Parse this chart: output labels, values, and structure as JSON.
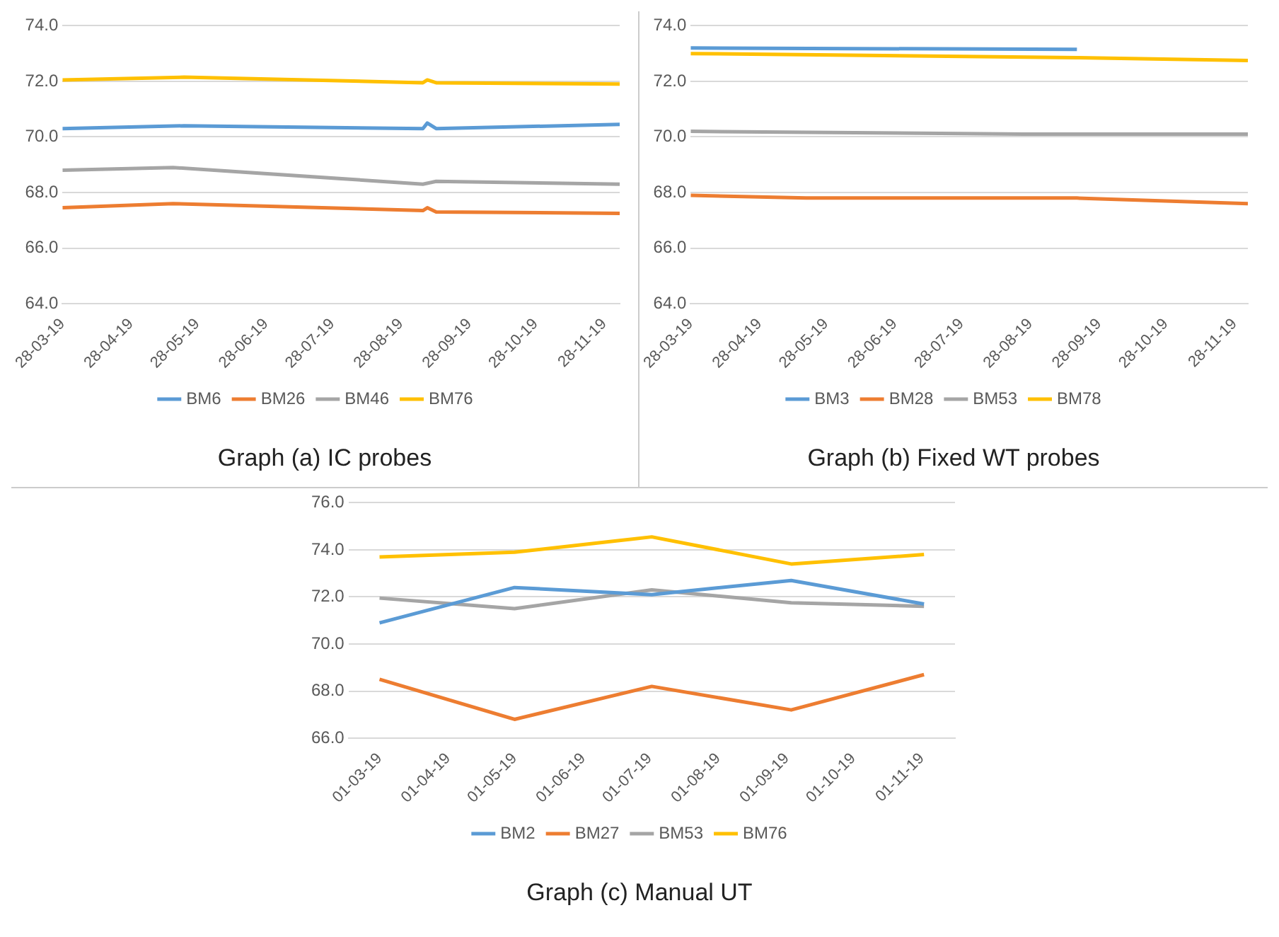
{
  "chart_data": [
    {
      "type": "line",
      "title": "Graph (a) IC probes",
      "xlim": [
        "2019-03-28",
        "2019-12-05"
      ],
      "xticks": [
        {
          "value": "2019-03-28",
          "label": "28-03-19"
        },
        {
          "value": "2019-04-28",
          "label": "28-04-19"
        },
        {
          "value": "2019-05-28",
          "label": "28-05-19"
        },
        {
          "value": "2019-06-28",
          "label": "28-06-19"
        },
        {
          "value": "2019-07-28",
          "label": "28-07-19"
        },
        {
          "value": "2019-08-28",
          "label": "28-08-19"
        },
        {
          "value": "2019-09-28",
          "label": "28-09-19"
        },
        {
          "value": "2019-10-28",
          "label": "28-10-19"
        },
        {
          "value": "2019-11-28",
          "label": "28-11-19"
        }
      ],
      "ylim": [
        64,
        74
      ],
      "yticks": [
        {
          "value": 64,
          "label": "64.0"
        },
        {
          "value": 66,
          "label": "66.0"
        },
        {
          "value": 68,
          "label": "68.0"
        },
        {
          "value": 70,
          "label": "70.0"
        },
        {
          "value": 72,
          "label": "72.0"
        },
        {
          "value": 74,
          "label": "74.0"
        }
      ],
      "grid": "y",
      "legend": "bottom",
      "marker": "none",
      "line_style": "solid",
      "series": [
        {
          "name": "BM6",
          "color": "#5b9bd5",
          "x": [
            "2019-03-28",
            "2019-05-22",
            "2019-09-07",
            "2019-09-09",
            "2019-09-13",
            "2019-12-05"
          ],
          "values": [
            70.3,
            70.4,
            70.3,
            70.5,
            70.3,
            70.45
          ]
        },
        {
          "name": "BM26",
          "color": "#ed7d31",
          "x": [
            "2019-03-28",
            "2019-05-17",
            "2019-09-07",
            "2019-09-09",
            "2019-09-13",
            "2019-12-05"
          ],
          "values": [
            67.45,
            67.6,
            67.35,
            67.45,
            67.3,
            67.25
          ]
        },
        {
          "name": "BM46",
          "color": "#a5a5a5",
          "x": [
            "2019-03-28",
            "2019-05-17",
            "2019-09-07",
            "2019-09-13",
            "2019-12-05"
          ],
          "values": [
            68.8,
            68.9,
            68.3,
            68.4,
            68.3
          ]
        },
        {
          "name": "BM76",
          "color": "#ffc000",
          "x": [
            "2019-03-28",
            "2019-05-22",
            "2019-09-07",
            "2019-09-09",
            "2019-09-13",
            "2019-12-05"
          ],
          "values": [
            72.05,
            72.15,
            71.95,
            72.05,
            71.95,
            71.9
          ]
        }
      ]
    },
    {
      "type": "line",
      "title": "Graph (b) Fixed WT probes",
      "xlim": [
        "2019-03-28",
        "2019-12-04"
      ],
      "xticks": [
        {
          "value": "2019-03-28",
          "label": "28-03-19"
        },
        {
          "value": "2019-04-28",
          "label": "28-04-19"
        },
        {
          "value": "2019-05-28",
          "label": "28-05-19"
        },
        {
          "value": "2019-06-28",
          "label": "28-06-19"
        },
        {
          "value": "2019-07-28",
          "label": "28-07-19"
        },
        {
          "value": "2019-08-28",
          "label": "28-08-19"
        },
        {
          "value": "2019-09-28",
          "label": "28-09-19"
        },
        {
          "value": "2019-10-28",
          "label": "28-10-19"
        },
        {
          "value": "2019-11-28",
          "label": "28-11-19"
        }
      ],
      "ylim": [
        64,
        74
      ],
      "yticks": [
        {
          "value": 64,
          "label": "64.0"
        },
        {
          "value": 66,
          "label": "66.0"
        },
        {
          "value": 68,
          "label": "68.0"
        },
        {
          "value": 70,
          "label": "70.0"
        },
        {
          "value": 72,
          "label": "72.0"
        },
        {
          "value": 74,
          "label": "74.0"
        }
      ],
      "grid": "y",
      "legend": "bottom",
      "marker": "none",
      "line_style": "solid",
      "series": [
        {
          "name": "BM3",
          "color": "#5b9bd5",
          "x": [
            "2019-03-28",
            "2019-09-18"
          ],
          "values": [
            73.2,
            73.15
          ]
        },
        {
          "name": "BM28",
          "color": "#ed7d31",
          "x": [
            "2019-03-28",
            "2019-05-19",
            "2019-08-25",
            "2019-09-18",
            "2019-12-04"
          ],
          "values": [
            67.9,
            67.8,
            67.8,
            67.8,
            67.6
          ]
        },
        {
          "name": "BM53",
          "color": "#a5a5a5",
          "x": [
            "2019-03-28",
            "2019-08-25",
            "2019-12-04"
          ],
          "values": [
            70.2,
            70.1,
            70.1
          ]
        },
        {
          "name": "BM78",
          "color": "#ffc000",
          "x": [
            "2019-03-28",
            "2019-09-18",
            "2019-12-04"
          ],
          "values": [
            73.0,
            72.85,
            72.75
          ]
        }
      ]
    },
    {
      "type": "line",
      "title": "Graph (c) Manual UT",
      "xlim": [
        "2019-02-15",
        "2019-11-16"
      ],
      "xticks": [
        {
          "value": "2019-03-01",
          "label": "01-03-19"
        },
        {
          "value": "2019-04-01",
          "label": "01-04-19"
        },
        {
          "value": "2019-05-01",
          "label": "01-05-19"
        },
        {
          "value": "2019-06-01",
          "label": "01-06-19"
        },
        {
          "value": "2019-07-01",
          "label": "01-07-19"
        },
        {
          "value": "2019-08-01",
          "label": "01-08-19"
        },
        {
          "value": "2019-09-01",
          "label": "01-09-19"
        },
        {
          "value": "2019-10-01",
          "label": "01-10-19"
        },
        {
          "value": "2019-11-01",
          "label": "01-11-19"
        }
      ],
      "ylim": [
        66,
        76
      ],
      "yticks": [
        {
          "value": 66,
          "label": "66.0"
        },
        {
          "value": 68,
          "label": "68.0"
        },
        {
          "value": 70,
          "label": "70.0"
        },
        {
          "value": 72,
          "label": "72.0"
        },
        {
          "value": 74,
          "label": "74.0"
        },
        {
          "value": 76,
          "label": "76.0"
        }
      ],
      "grid": "y",
      "legend": "bottom",
      "marker": "none",
      "line_style": "solid",
      "series": [
        {
          "name": "BM2",
          "color": "#5b9bd5",
          "x": [
            "2019-03-01",
            "2019-05-01",
            "2019-07-02",
            "2019-09-03",
            "2019-11-02"
          ],
          "values": [
            70.9,
            72.4,
            72.1,
            72.7,
            71.7
          ]
        },
        {
          "name": "BM27",
          "color": "#ed7d31",
          "x": [
            "2019-03-01",
            "2019-05-01",
            "2019-07-02",
            "2019-09-03",
            "2019-11-02"
          ],
          "values": [
            68.5,
            66.8,
            68.2,
            67.2,
            68.7
          ]
        },
        {
          "name": "BM53",
          "color": "#a5a5a5",
          "x": [
            "2019-03-01",
            "2019-05-01",
            "2019-07-02",
            "2019-09-03",
            "2019-11-02"
          ],
          "values": [
            71.95,
            71.5,
            72.3,
            71.75,
            71.6
          ]
        },
        {
          "name": "BM76",
          "color": "#ffc000",
          "x": [
            "2019-03-01",
            "2019-05-01",
            "2019-07-02",
            "2019-09-03",
            "2019-11-02"
          ],
          "values": [
            73.7,
            73.9,
            74.55,
            73.4,
            73.8
          ]
        }
      ]
    }
  ]
}
